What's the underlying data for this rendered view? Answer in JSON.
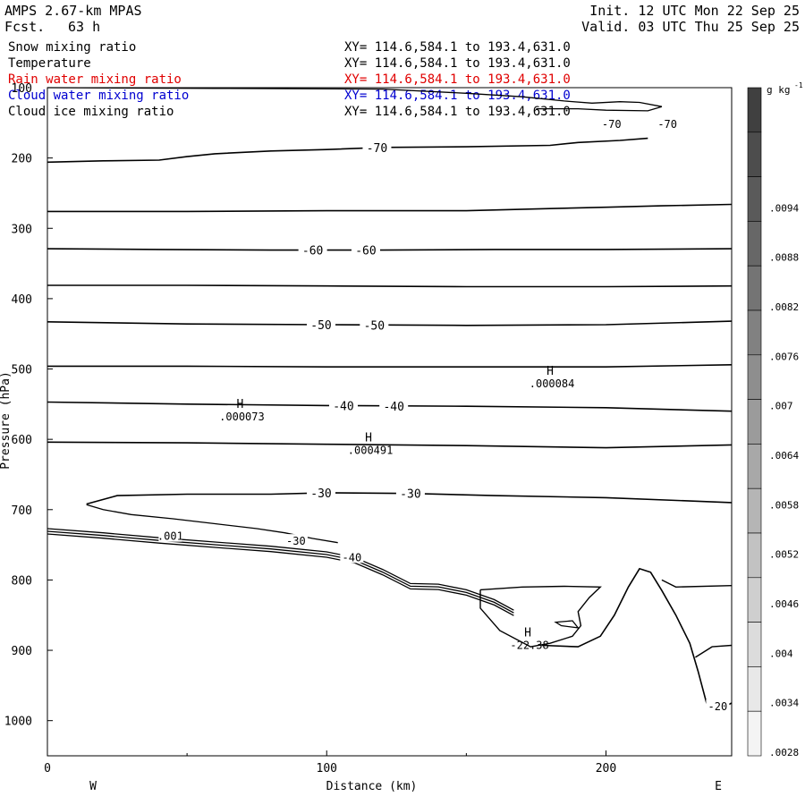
{
  "header": {
    "model": "AMPS 2.67-km MPAS",
    "forecast_label": "Fcst.",
    "forecast_hours": "63 h",
    "init": "Init. 12 UTC Mon 22 Sep 25",
    "valid": "Valid. 03 UTC Thu 25 Sep 25"
  },
  "fields": [
    {
      "name": "Snow mixing ratio",
      "xy": "XY= 114.6,584.1 to 193.4,631.0",
      "color": "#000000"
    },
    {
      "name": "Temperature",
      "xy": "XY= 114.6,584.1 to 193.4,631.0",
      "color": "#000000"
    },
    {
      "name": "Rain water mixing ratio",
      "xy": "XY= 114.6,584.1 to 193.4,631.0",
      "color": "#e00000"
    },
    {
      "name": "Cloud water mixing ratio",
      "xy": "XY= 114.6,584.1 to 193.4,631.0",
      "color": "#0000d0"
    },
    {
      "name": "Cloud ice mixing ratio",
      "xy": "XY= 114.6,584.1 to 193.4,631.0",
      "color": "#000000"
    }
  ],
  "chart_data": {
    "type": "line",
    "xlabel": "Distance (km)",
    "ylabel": "Pressure (hPa)",
    "xlim": [
      0,
      245
    ],
    "ylim": [
      1050,
      100
    ],
    "x_ticks": [
      0,
      100,
      200
    ],
    "y_ticks": [
      100,
      200,
      300,
      400,
      500,
      600,
      700,
      800,
      900,
      1000
    ],
    "direction_labels": [
      "W",
      "E"
    ],
    "colorbar": {
      "unit": "g kg",
      "unit_exp": "-1",
      "labels": [
        ".0094",
        ".0088",
        ".0082",
        ".0076",
        ".007",
        ".0064",
        ".0058",
        ".0052",
        ".0046",
        ".004",
        ".0034",
        ".0028"
      ],
      "colors": [
        "#404040",
        "#4d4d4d",
        "#5a5a5a",
        "#676767",
        "#747474",
        "#818181",
        "#8e8e8e",
        "#9b9b9b",
        "#a8a8a8",
        "#b5b5b5",
        "#c2c2c2",
        "#cfcfcf",
        "#dcdcdc",
        "#e8e8e8",
        "#f4f4f4"
      ]
    },
    "isotherms": [
      {
        "label": "-70",
        "label_x": [
          118
        ],
        "points": [
          [
            0,
            206
          ],
          [
            20,
            204
          ],
          [
            40,
            203
          ],
          [
            50,
            198
          ],
          [
            60,
            194
          ],
          [
            80,
            190
          ],
          [
            100,
            188
          ],
          [
            120,
            185
          ],
          [
            150,
            184
          ],
          [
            180,
            182
          ],
          [
            190,
            178
          ],
          [
            205,
            175
          ],
          [
            215,
            172
          ]
        ]
      },
      {
        "label": "",
        "label_x": [],
        "points": [
          [
            0,
            276
          ],
          [
            50,
            276
          ],
          [
            100,
            275
          ],
          [
            150,
            275
          ],
          [
            180,
            272
          ],
          [
            200,
            270
          ],
          [
            220,
            268
          ],
          [
            245,
            266
          ]
        ]
      },
      {
        "label": "-60",
        "label_x": [
          95,
          114
        ],
        "points": [
          [
            0,
            329
          ],
          [
            40,
            330
          ],
          [
            80,
            331
          ],
          [
            120,
            331
          ],
          [
            160,
            330
          ],
          [
            200,
            330
          ],
          [
            245,
            329
          ]
        ]
      },
      {
        "label": "",
        "label_x": [],
        "points": [
          [
            0,
            381
          ],
          [
            50,
            381
          ],
          [
            100,
            382
          ],
          [
            150,
            383
          ],
          [
            200,
            383
          ],
          [
            245,
            382
          ]
        ]
      },
      {
        "label": "-50",
        "label_x": [
          98,
          117
        ],
        "points": [
          [
            0,
            433
          ],
          [
            50,
            436
          ],
          [
            100,
            437
          ],
          [
            150,
            438
          ],
          [
            200,
            437
          ],
          [
            245,
            432
          ]
        ]
      },
      {
        "label": "",
        "label_x": [],
        "points": [
          [
            0,
            496
          ],
          [
            50,
            496
          ],
          [
            100,
            497
          ],
          [
            150,
            497
          ],
          [
            200,
            497
          ],
          [
            245,
            494
          ]
        ]
      },
      {
        "label": "-40",
        "label_x": [
          106,
          124
        ],
        "points": [
          [
            0,
            547
          ],
          [
            50,
            550
          ],
          [
            100,
            552
          ],
          [
            150,
            553
          ],
          [
            200,
            555
          ],
          [
            245,
            560
          ]
        ]
      },
      {
        "label": "",
        "label_x": [],
        "points": [
          [
            0,
            604
          ],
          [
            50,
            605
          ],
          [
            100,
            607
          ],
          [
            150,
            609
          ],
          [
            200,
            612
          ],
          [
            245,
            608
          ]
        ]
      },
      {
        "label": "-30",
        "label_x": [
          98,
          130
        ],
        "points": [
          [
            14,
            692
          ],
          [
            25,
            680
          ],
          [
            50,
            678
          ],
          [
            80,
            678
          ],
          [
            100,
            676
          ],
          [
            130,
            677
          ],
          [
            160,
            680
          ],
          [
            200,
            683
          ],
          [
            245,
            690
          ]
        ]
      }
    ],
    "extrema": [
      {
        "label": "H",
        "value": ".000084",
        "x": 180,
        "y": 508
      },
      {
        "label": "H",
        "value": ".000073",
        "x": 69,
        "y": 555
      },
      {
        "label": "H",
        "value": ".000491",
        "x": 115,
        "y": 603
      },
      {
        "label": "H",
        "value": "-22.38",
        "x": 172,
        "y": 880
      }
    ],
    "low_annotations": [
      {
        "text": "-30",
        "x": 89,
        "y": 745
      },
      {
        "text": "-40",
        "x": 109,
        "y": 768
      },
      {
        "text": ".001",
        "x": 44,
        "y": 738
      },
      {
        "text": "-70",
        "x": 202,
        "y": 152
      },
      {
        "text": "-70",
        "x": 222,
        "y": 152
      },
      {
        "text": "-20",
        "x": 240,
        "y": 980
      }
    ]
  }
}
